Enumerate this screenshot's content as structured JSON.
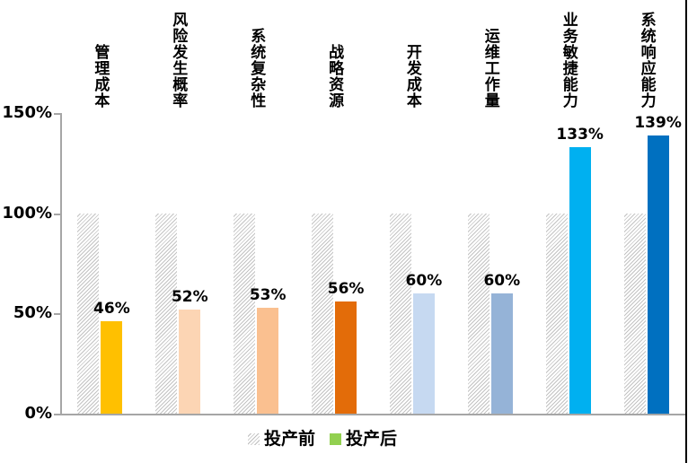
{
  "chart_data": {
    "type": "bar",
    "title": "",
    "categories": [
      "管理成本",
      "风险发生概率",
      "系统复杂性",
      "战略资源",
      "开发成本",
      "运维工作量",
      "业务敏捷能力",
      "系统响应能力"
    ],
    "series": [
      {
        "name": "投产前",
        "values": [
          100,
          100,
          100,
          100,
          100,
          100,
          100,
          100
        ],
        "style": "hatched",
        "legend_color": "#c3c3c3"
      },
      {
        "name": "投产后",
        "values": [
          46,
          52,
          53,
          56,
          60,
          60,
          133,
          139
        ],
        "value_labels": [
          "46%",
          "52%",
          "53%",
          "56%",
          "60%",
          "60%",
          "133%",
          "139%"
        ],
        "colors": [
          "#FFC000",
          "#FCD5B4",
          "#FAC090",
          "#E36C09",
          "#C6D9F1",
          "#95B3D7",
          "#00B0F0",
          "#0070C0"
        ],
        "legend_color": "#92D050"
      }
    ],
    "yticks": [
      {
        "label": "0%",
        "value": 0
      },
      {
        "label": "50%",
        "value": 50
      },
      {
        "label": "100%",
        "value": 100
      },
      {
        "label": "150%",
        "value": 150
      }
    ],
    "ylim": [
      0,
      150
    ],
    "xlabel": "",
    "ylabel": "",
    "grid": false,
    "legend_position": "bottom",
    "axis_color": "#a6a6a6",
    "text_color": "#000000",
    "background_color": "#ffffff"
  }
}
